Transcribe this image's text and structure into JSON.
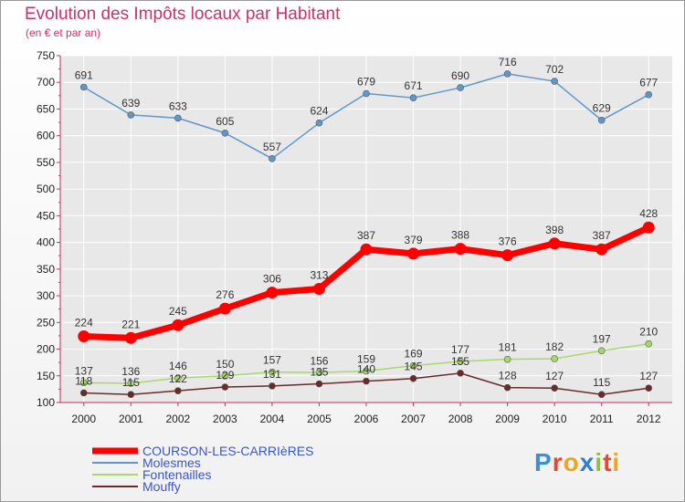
{
  "title": "Evolution des Impôts locaux par Habitant",
  "subtitle": "(en € et par an)",
  "logo": "Proxiti",
  "chart_data": {
    "type": "line",
    "x": [
      "2000",
      "2001",
      "2002",
      "2003",
      "2004",
      "2005",
      "2006",
      "2007",
      "2008",
      "2009",
      "2010",
      "2011",
      "2012"
    ],
    "ylim": [
      100,
      750
    ],
    "yticks": [
      100,
      150,
      200,
      250,
      300,
      350,
      400,
      450,
      500,
      550,
      600,
      650,
      700,
      750
    ],
    "grid": true,
    "legend_placement": "bottom-left",
    "series": [
      {
        "name": "COURSON-LES-CARRIèRES",
        "color": "#ff0000",
        "values": [
          224,
          221,
          245,
          276,
          306,
          313,
          387,
          379,
          388,
          376,
          398,
          387,
          428
        ]
      },
      {
        "name": "Molesmes",
        "color": "#5f97cc",
        "values": [
          691,
          639,
          633,
          605,
          557,
          624,
          679,
          671,
          690,
          716,
          702,
          629,
          677
        ]
      },
      {
        "name": "Fontenailles",
        "color": "#a6d96a",
        "values": [
          137,
          136,
          146,
          150,
          157,
          156,
          159,
          169,
          177,
          181,
          182,
          197,
          210
        ]
      },
      {
        "name": "Mouffy",
        "color": "#6b2a2a",
        "values": [
          118,
          115,
          122,
          129,
          131,
          135,
          140,
          145,
          155,
          128,
          127,
          115,
          127
        ]
      }
    ]
  }
}
